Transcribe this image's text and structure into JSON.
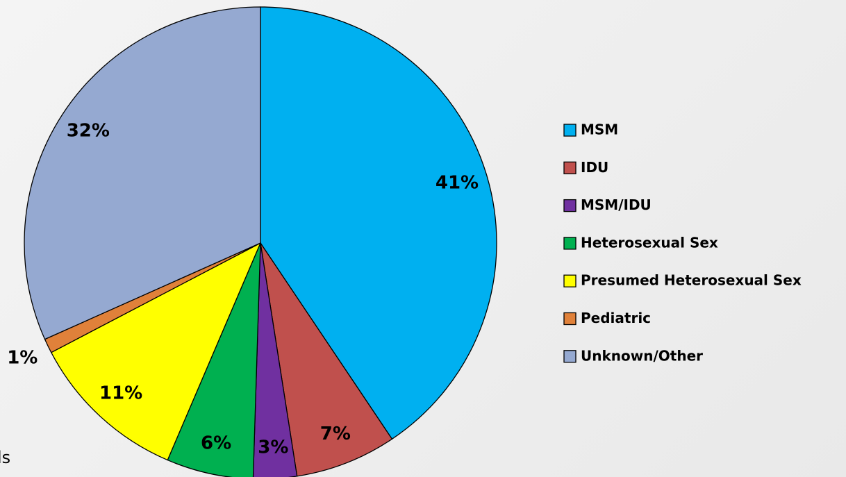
{
  "chart_data": {
    "type": "pie",
    "categories": [
      "MSM",
      "IDU",
      "MSM/IDU",
      "Heterosexual Sex",
      "Presumed Heterosexual Sex",
      "Pediatric",
      "Unknown/Other"
    ],
    "values": [
      41,
      7,
      3,
      6,
      11,
      1,
      32
    ],
    "value_labels": [
      "41%",
      "7%",
      "3%",
      "6%",
      "11%",
      "1%",
      "32%"
    ],
    "colors": [
      "#00b0f0",
      "#c0504d",
      "#7030a0",
      "#00b050",
      "#ffff00",
      "#e0813a",
      "#95a9d1"
    ],
    "legend": "right"
  },
  "background_text": "ls"
}
